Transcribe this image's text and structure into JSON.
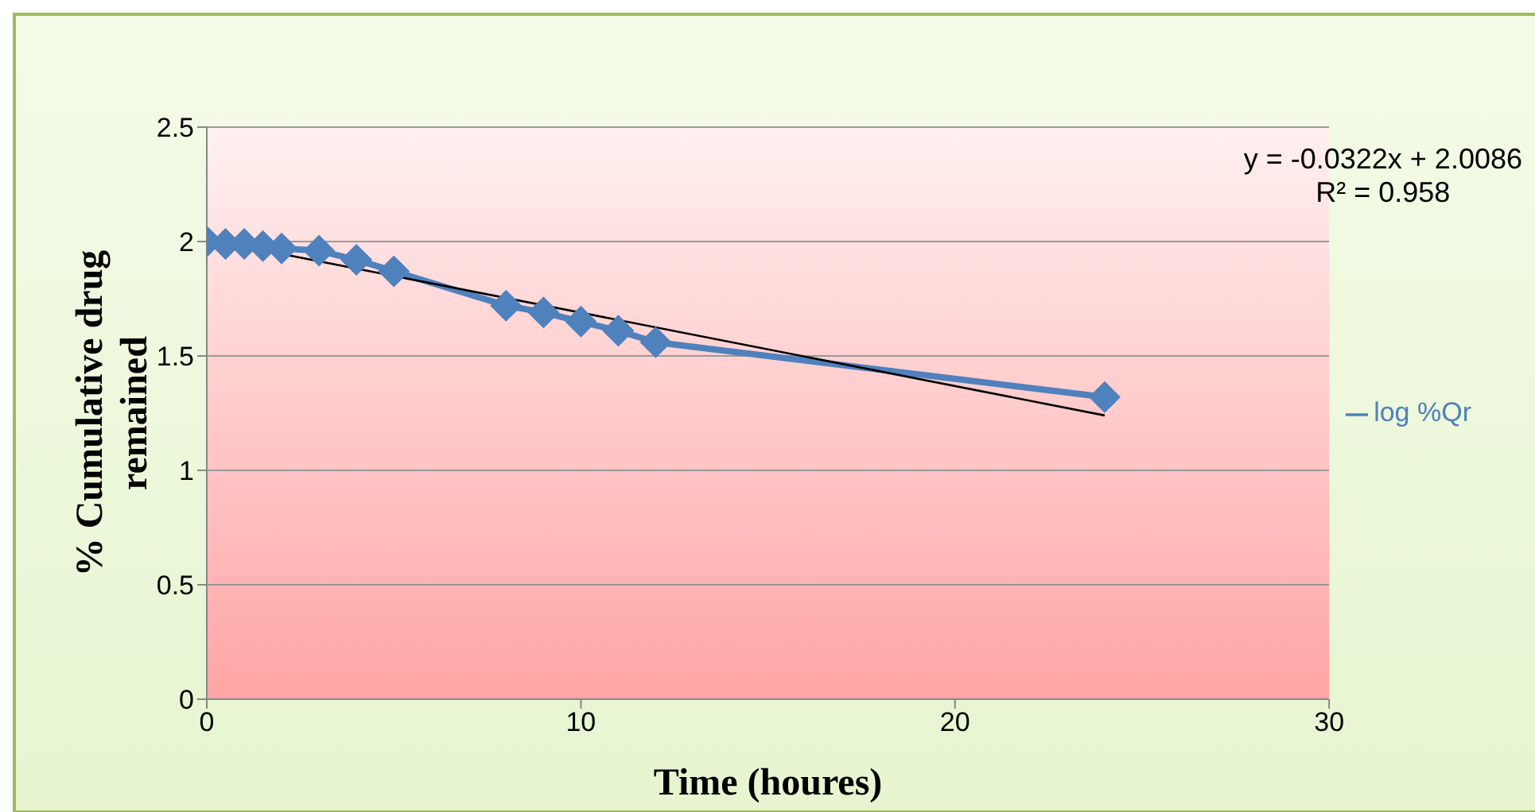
{
  "chart_data": {
    "type": "line",
    "xlabel": "Time (houres)",
    "ylabel": "% Cumulative drug remained",
    "x": [
      0,
      0.5,
      1,
      1.5,
      2,
      3,
      4,
      5,
      8,
      9,
      10,
      11,
      12,
      24
    ],
    "series": [
      {
        "name": "log %Qr",
        "color": "#4f81bd",
        "values": [
          2.0,
          1.99,
          1.99,
          1.98,
          1.97,
          1.96,
          1.92,
          1.87,
          1.72,
          1.69,
          1.65,
          1.61,
          1.56,
          1.32
        ],
        "marker": "diamond"
      },
      {
        "color": "#000000",
        "x": [
          0,
          24
        ],
        "values": [
          2.01,
          1.24
        ],
        "marker": "none"
      }
    ],
    "xlim": [
      0,
      30
    ],
    "xticks": [
      0,
      10,
      20,
      30
    ],
    "ylim": [
      0,
      2.5
    ],
    "yticks": [
      0,
      0.5,
      1,
      1.5,
      2,
      2.5
    ],
    "grid": "y",
    "legend": "right",
    "annotations": [
      "y = -0.0322x + 2.0086",
      "R² = 0.958"
    ]
  }
}
